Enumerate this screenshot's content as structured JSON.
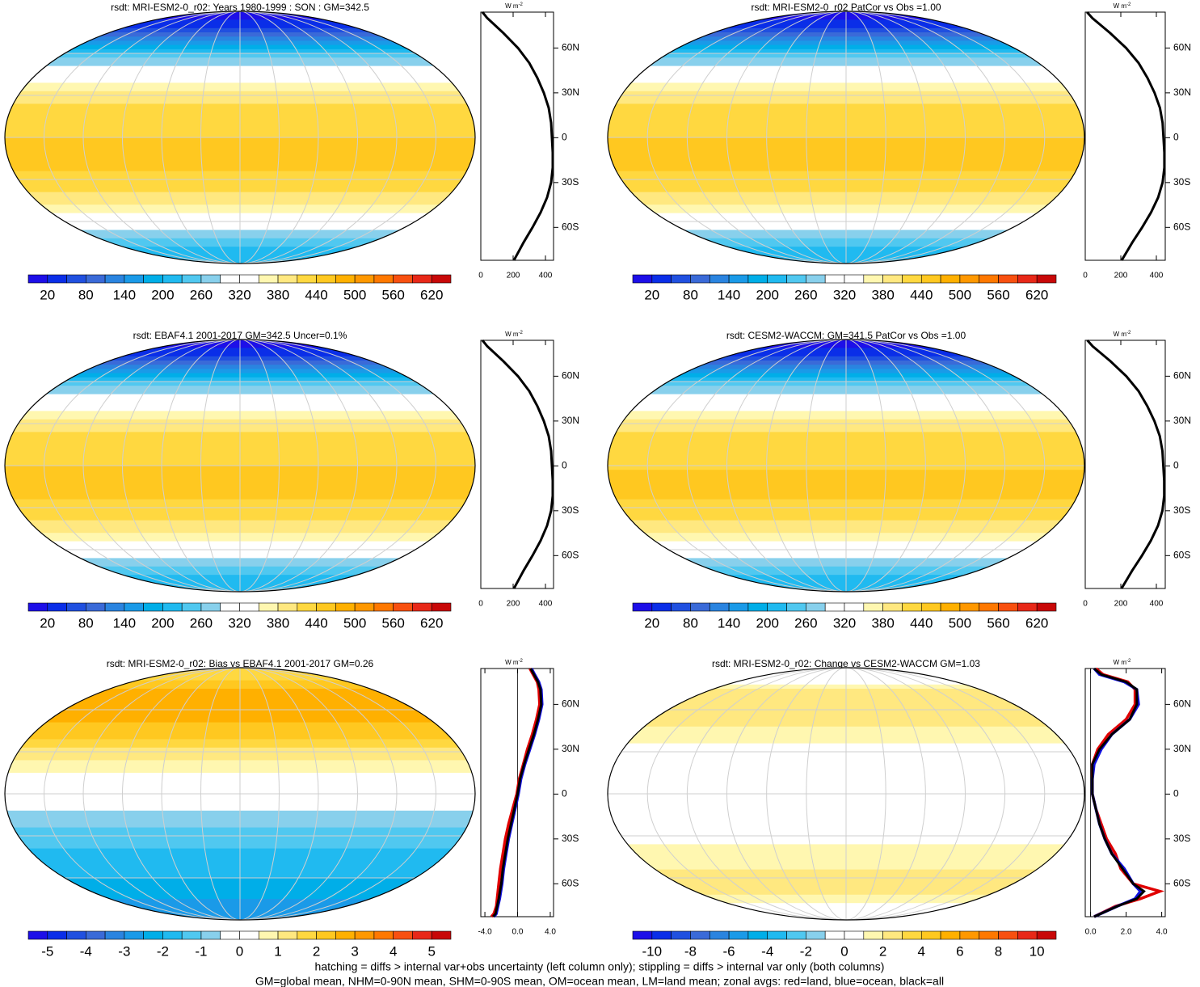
{
  "panels": [
    {
      "title": "rsdt: MRI-ESM2-0_r02: Years 1980-1999 : SON : GM=342.5",
      "clim": [
        20,
        620
      ],
      "colorbar_labels": [
        20,
        80,
        140,
        200,
        260,
        320,
        380,
        440,
        500,
        560,
        620
      ],
      "colors": [
        "#1d0fe8",
        "#0a2ee8",
        "#2050e0",
        "#3a6ad8",
        "#2a84e0",
        "#1a9ae8",
        "#00aee8",
        "#20baf0",
        "#50c8f0",
        "#88d0ec",
        "#ffffff",
        "#ffffff",
        "#fff7b0",
        "#ffe880",
        "#ffd840",
        "#ffc820",
        "#ffb000",
        "#ff9800",
        "#ff7800",
        "#f85010",
        "#e82818",
        "#c80808"
      ],
      "profile": {
        "unit": "W m",
        "unit_exp": "-2",
        "lat": [
          84,
          80,
          75,
          70,
          60,
          50,
          40,
          30,
          20,
          10,
          0,
          -10,
          -20,
          -30,
          -40,
          -50,
          -60,
          -70,
          -75,
          -80,
          -82
        ],
        "series": [
          {
            "color": "#000000",
            "values": [
              10,
              40,
              90,
              140,
              230,
              300,
              350,
              390,
              420,
              435,
              440,
              445,
              445,
              435,
              410,
              370,
              320,
              265,
              240,
              215,
              205
            ]
          }
        ],
        "xlim": [
          0,
          450
        ],
        "xticks": [
          0,
          200,
          400
        ],
        "ylim": [
          -82,
          84
        ],
        "yticks": [
          {
            "value": 60,
            "label": "60N"
          },
          {
            "value": 30,
            "label": "30N"
          },
          0,
          {
            "value": -30,
            "label": "30S"
          },
          {
            "value": -60,
            "label": "60S"
          }
        ]
      }
    },
    {
      "title": "rsdt: MRI-ESM2-0_r02 PatCor vs Obs =1.00",
      "clim": [
        20,
        620
      ],
      "colorbar_labels": [
        20,
        80,
        140,
        200,
        260,
        320,
        380,
        440,
        500,
        560,
        620
      ],
      "colors": [
        "#1d0fe8",
        "#0a2ee8",
        "#2050e0",
        "#3a6ad8",
        "#2a84e0",
        "#1a9ae8",
        "#00aee8",
        "#20baf0",
        "#50c8f0",
        "#88d0ec",
        "#ffffff",
        "#ffffff",
        "#fff7b0",
        "#ffe880",
        "#ffd840",
        "#ffc820",
        "#ffb000",
        "#ff9800",
        "#ff7800",
        "#f85010",
        "#e82818",
        "#c80808"
      ],
      "profile": {
        "unit": "W m",
        "unit_exp": "-2",
        "lat": [
          84,
          80,
          75,
          70,
          60,
          50,
          40,
          30,
          20,
          10,
          0,
          -10,
          -20,
          -30,
          -40,
          -50,
          -60,
          -70,
          -75,
          -80,
          -82
        ],
        "series": [
          {
            "color": "#000000",
            "values": [
              10,
              40,
              90,
              140,
              230,
              300,
              350,
              390,
              420,
              435,
              440,
              445,
              445,
              435,
              410,
              370,
              320,
              265,
              240,
              215,
              205
            ]
          }
        ],
        "xlim": [
          0,
          450
        ],
        "xticks": [
          0,
          200,
          400
        ],
        "ylim": [
          -82,
          84
        ],
        "yticks": [
          {
            "value": 60,
            "label": "60N"
          },
          {
            "value": 30,
            "label": "30N"
          },
          0,
          {
            "value": -30,
            "label": "30S"
          },
          {
            "value": -60,
            "label": "60S"
          }
        ]
      }
    },
    {
      "title": "rsdt: EBAF4.1 2001-2017 GM=342.5 Uncer=0.1%",
      "clim": [
        20,
        620
      ],
      "colorbar_labels": [
        20,
        80,
        140,
        200,
        260,
        320,
        380,
        440,
        500,
        560,
        620
      ],
      "colors": [
        "#1d0fe8",
        "#0a2ee8",
        "#2050e0",
        "#3a6ad8",
        "#2a84e0",
        "#1a9ae8",
        "#00aee8",
        "#20baf0",
        "#50c8f0",
        "#88d0ec",
        "#ffffff",
        "#ffffff",
        "#fff7b0",
        "#ffe880",
        "#ffd840",
        "#ffc820",
        "#ffb000",
        "#ff9800",
        "#ff7800",
        "#f85010",
        "#e82818",
        "#c80808"
      ],
      "profile": {
        "unit": "W m",
        "unit_exp": "-2",
        "lat": [
          84,
          80,
          75,
          70,
          60,
          50,
          40,
          30,
          20,
          10,
          0,
          -10,
          -20,
          -30,
          -40,
          -50,
          -60,
          -70,
          -75,
          -80,
          -82
        ],
        "series": [
          {
            "color": "#000000",
            "values": [
              10,
              40,
              90,
              140,
              230,
              300,
              350,
              390,
              420,
              435,
              440,
              445,
              445,
              435,
              410,
              370,
              320,
              265,
              240,
              215,
              205
            ]
          }
        ],
        "xlim": [
          0,
          450
        ],
        "xticks": [
          0,
          200,
          400
        ],
        "ylim": [
          -82,
          84
        ],
        "yticks": [
          {
            "value": 60,
            "label": "60N"
          },
          {
            "value": 30,
            "label": "30N"
          },
          0,
          {
            "value": -30,
            "label": "30S"
          },
          {
            "value": -60,
            "label": "60S"
          }
        ]
      }
    },
    {
      "title": "rsdt: CESM2-WACCM: GM=341.5 PatCor vs Obs =1.00",
      "clim": [
        20,
        620
      ],
      "colorbar_labels": [
        20,
        80,
        140,
        200,
        260,
        320,
        380,
        440,
        500,
        560,
        620
      ],
      "colors": [
        "#1d0fe8",
        "#0a2ee8",
        "#2050e0",
        "#3a6ad8",
        "#2a84e0",
        "#1a9ae8",
        "#00aee8",
        "#20baf0",
        "#50c8f0",
        "#88d0ec",
        "#ffffff",
        "#ffffff",
        "#fff7b0",
        "#ffe880",
        "#ffd840",
        "#ffc820",
        "#ffb000",
        "#ff9800",
        "#ff7800",
        "#f85010",
        "#e82818",
        "#c80808"
      ],
      "profile": {
        "unit": "W m",
        "unit_exp": "-2",
        "lat": [
          84,
          80,
          75,
          70,
          60,
          50,
          40,
          30,
          20,
          10,
          0,
          -10,
          -20,
          -30,
          -40,
          -50,
          -60,
          -70,
          -75,
          -80,
          -82
        ],
        "series": [
          {
            "color": "#000000",
            "values": [
              12,
              42,
              92,
              142,
              231,
              300,
              349,
              389,
              419,
              434,
              439,
              444,
              444,
              434,
              409,
              369,
              319,
              264,
              239,
              214,
              204
            ]
          }
        ],
        "xlim": [
          0,
          450
        ],
        "xticks": [
          0,
          200,
          400
        ],
        "ylim": [
          -82,
          84
        ],
        "yticks": [
          {
            "value": 60,
            "label": "60N"
          },
          {
            "value": 30,
            "label": "30N"
          },
          0,
          {
            "value": -30,
            "label": "30S"
          },
          {
            "value": -60,
            "label": "60S"
          }
        ]
      }
    },
    {
      "title": "rsdt: MRI-ESM2-0_r02: Bias vs EBAF4.1 2001-2017  GM=0.26",
      "clim": [
        -5,
        5
      ],
      "colorbar_labels": [
        -5,
        -4,
        -3,
        -2,
        -1,
        0,
        1,
        2,
        3,
        4,
        5
      ],
      "colors": [
        "#1d0fe8",
        "#0a2ee8",
        "#2050e0",
        "#3a6ad8",
        "#2a84e0",
        "#1a9ae8",
        "#00aee8",
        "#20baf0",
        "#50c8f0",
        "#88d0ec",
        "#ffffff",
        "#ffffff",
        "#fff7b0",
        "#ffe880",
        "#ffd840",
        "#ffc820",
        "#ffb000",
        "#ff9800",
        "#ff7800",
        "#f85010",
        "#e82818",
        "#c80808"
      ],
      "profile": {
        "unit": "W m",
        "unit_exp": "-2",
        "lat": [
          84,
          80,
          75,
          70,
          60,
          50,
          40,
          30,
          20,
          10,
          0,
          -10,
          -20,
          -30,
          -40,
          -50,
          -60,
          -70,
          -75,
          -80,
          -82
        ],
        "series": [
          {
            "color": "#e00000",
            "values": [
              1.5,
              1.9,
              2.4,
              2.6,
              2.7,
              2.3,
              1.8,
              1.2,
              0.7,
              0.2,
              -0.1,
              -0.6,
              -1.1,
              -1.5,
              -1.8,
              -2.1,
              -2.3,
              -2.5,
              -2.6,
              -2.9,
              -3.2
            ]
          },
          {
            "color": "#1010e0",
            "values": [
              1.7,
              2.1,
              2.6,
              2.9,
              3.0,
              2.6,
              2.1,
              1.5,
              0.9,
              0.4,
              0.1,
              -0.3,
              -0.7,
              -1.1,
              -1.4,
              -1.7,
              -1.9,
              -2.2,
              -2.4,
              -2.6,
              -2.9
            ]
          },
          {
            "color": "#000000",
            "values": [
              1.6,
              2.0,
              2.5,
              2.8,
              2.9,
              2.5,
              2.0,
              1.4,
              0.8,
              0.3,
              0,
              -0.4,
              -0.8,
              -1.2,
              -1.5,
              -1.8,
              -2.0,
              -2.3,
              -2.5,
              -2.7,
              -3.0
            ]
          }
        ],
        "xlim": [
          -4.5,
          4.4
        ],
        "xticks": [
          {
            "value": -4,
            "label": "-4.0"
          },
          {
            "value": 0,
            "label": "0.0"
          },
          {
            "value": 4,
            "label": "4.0"
          }
        ],
        "ylim": [
          -82,
          84
        ],
        "yticks": [
          {
            "value": 60,
            "label": "60N"
          },
          {
            "value": 30,
            "label": "30N"
          },
          0,
          {
            "value": -30,
            "label": "30S"
          },
          {
            "value": -60,
            "label": "60S"
          }
        ]
      }
    },
    {
      "title": "rsdt: MRI-ESM2-0_r02: Change vs CESM2-WACCM GM=1.03",
      "clim": [
        -10,
        10
      ],
      "colorbar_labels": [
        -10,
        -8,
        -6,
        -4,
        -2,
        0,
        2,
        4,
        6,
        8,
        10
      ],
      "colors": [
        "#1d0fe8",
        "#0a2ee8",
        "#2050e0",
        "#3a6ad8",
        "#2a84e0",
        "#1a9ae8",
        "#00aee8",
        "#20baf0",
        "#50c8f0",
        "#88d0ec",
        "#ffffff",
        "#ffffff",
        "#fff7b0",
        "#ffe880",
        "#ffd840",
        "#ffc820",
        "#ffb000",
        "#ff9800",
        "#ff7800",
        "#f85010",
        "#e82818",
        "#c80808"
      ],
      "profile": {
        "unit": "W m",
        "unit_exp": "-2",
        "lat": [
          84,
          80,
          75,
          70,
          60,
          50,
          40,
          30,
          20,
          10,
          0,
          -10,
          -20,
          -30,
          -40,
          -50,
          -60,
          -65,
          -70,
          -75,
          -82
        ],
        "series": [
          {
            "color": "#e00000",
            "values": [
              0.3,
              0.7,
              2.1,
              2.5,
              2.5,
              2.0,
              1.0,
              0.4,
              0.1,
              0.1,
              0.1,
              0.3,
              0.6,
              0.9,
              1.4,
              1.7,
              2.4,
              3.9,
              2.8,
              1.4,
              0.2
            ]
          },
          {
            "color": "#1010e0",
            "values": [
              0.2,
              0.5,
              1.9,
              2.6,
              2.7,
              2.2,
              1.2,
              0.6,
              0.2,
              0.1,
              0.1,
              0.3,
              0.5,
              0.8,
              1.2,
              1.9,
              2.4,
              2.8,
              2.5,
              1.5,
              0.2
            ]
          },
          {
            "color": "#000000",
            "values": [
              0.2,
              0.6,
              2.0,
              2.6,
              2.6,
              2.2,
              1.2,
              0.5,
              0.1,
              0.1,
              0.1,
              0.3,
              0.5,
              0.8,
              1.2,
              1.8,
              2.4,
              3.0,
              2.6,
              1.5,
              0.2
            ]
          }
        ],
        "xlim": [
          -0.3,
          4.2
        ],
        "xticks": [
          {
            "value": 0,
            "label": "0.0"
          },
          {
            "value": 2,
            "label": "2.0"
          },
          {
            "value": 4,
            "label": "4.0"
          }
        ],
        "ylim": [
          -82,
          84
        ],
        "yticks": [
          {
            "value": 60,
            "label": "60N"
          },
          {
            "value": 30,
            "label": "30N"
          },
          0,
          {
            "value": -30,
            "label": "30S"
          },
          {
            "value": -60,
            "label": "60S"
          }
        ]
      }
    }
  ],
  "notes": [
    "hatching = diffs > internal var+obs uncertainty (left column only); stippling = diffs > internal var only (both columns)",
    "GM=global mean, NHM=0-90N mean, SHM=0-90S mean, OM=ocean mean, LM=land mean; zonal avgs: red=land, blue=ocean, black=all"
  ]
}
